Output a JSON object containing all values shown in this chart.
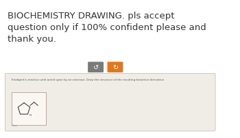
{
  "bg_color": "#ffffff",
  "title_text": "BIOCHEMISTRY DRAWING. pls accept\nquestion only if 100% confident please and\nthank you.",
  "title_fontsize": 9.5,
  "title_color": "#333333",
  "btn1_color": "#7a7a7a",
  "btn2_color": "#e07820",
  "card_bg": "#f7f3ee",
  "card_border": "#ccbcac",
  "card_outer_bg": "#e8e4df",
  "card_outer_border": "#cccccc",
  "question_text": "Enalapril is inactive until acted upon by an esterase. Draw the structure of the resulting bioactive derivative.",
  "question_fontsize": 3.0,
  "hint_text": "Hint",
  "hint_fontsize": 3.2
}
